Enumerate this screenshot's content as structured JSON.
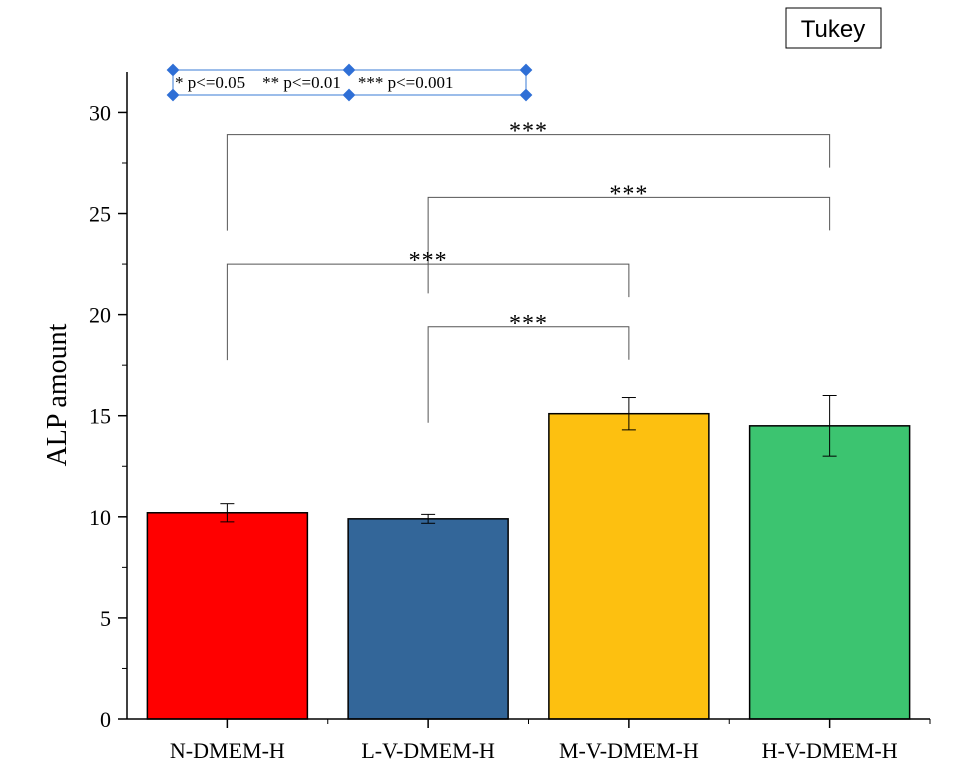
{
  "chart_data": {
    "type": "bar",
    "categories": [
      "N-DMEM-H",
      "L-V-DMEM-H",
      "M-V-DMEM-H",
      "H-V-DMEM-H"
    ],
    "values": [
      10.2,
      9.9,
      15.1,
      14.5
    ],
    "errors": [
      0.45,
      0.22,
      0.8,
      1.5
    ],
    "colors": [
      "#ff0000",
      "#336699",
      "#fdc010",
      "#3cc470"
    ],
    "title": "",
    "xlabel": "",
    "ylabel": "ALP amount",
    "ylim": [
      0,
      32
    ],
    "yticks": [
      0,
      5,
      10,
      15,
      20,
      25,
      30
    ],
    "grid": false,
    "legend_box": "Tukey",
    "significance_legend": "* p<=0.05    ** p<=0.01    *** p<=0.001",
    "comparisons": [
      {
        "from": 0,
        "to": 3,
        "label": "***",
        "level": 28.9
      },
      {
        "from": 1,
        "to": 3,
        "label": "***",
        "level": 25.8
      },
      {
        "from": 0,
        "to": 2,
        "label": "***",
        "level": 22.5
      },
      {
        "from": 1,
        "to": 2,
        "label": "***",
        "level": 19.4
      }
    ]
  }
}
